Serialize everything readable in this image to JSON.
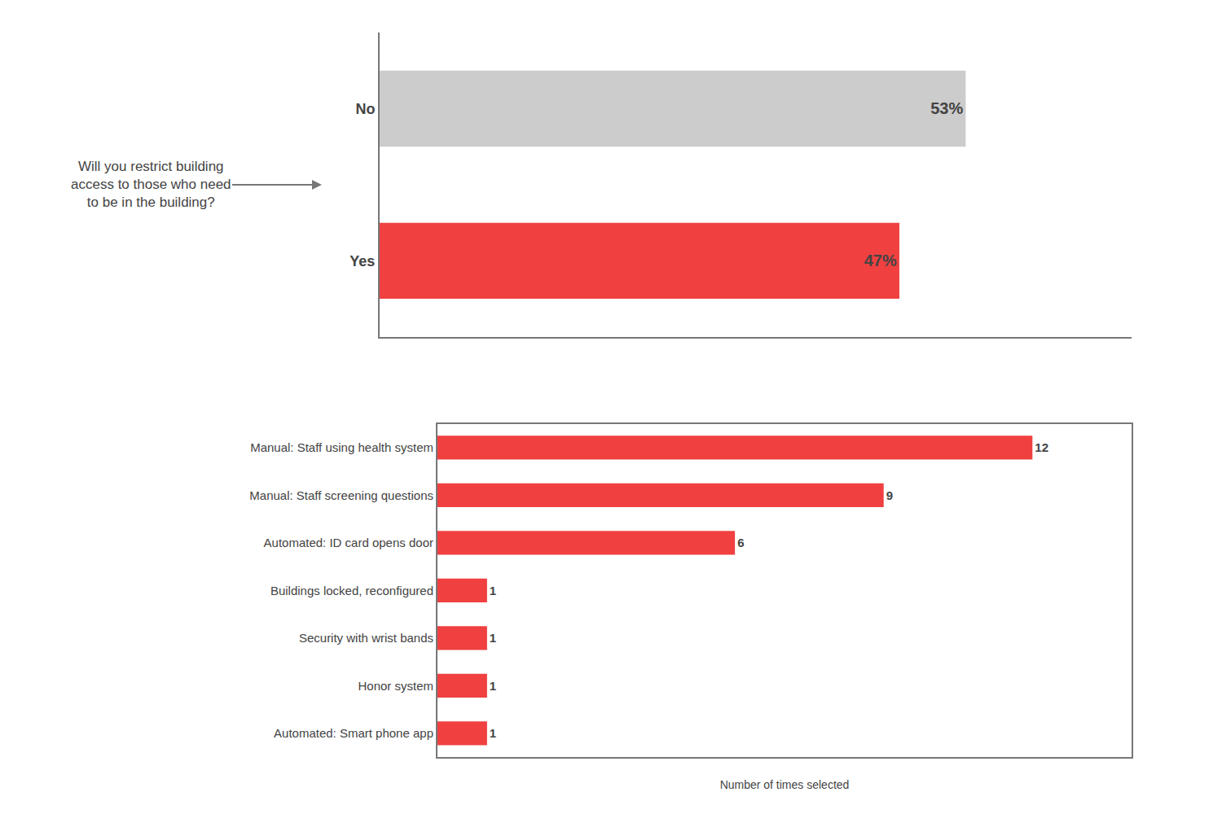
{
  "chart_data": [
    {
      "type": "bar",
      "orientation": "horizontal",
      "annotation": "Will you restrict building\naccess to those who need\nto be in the building?",
      "categories": [
        "No",
        "Yes"
      ],
      "values": [
        53,
        47
      ],
      "value_labels": [
        "53%",
        "47%"
      ],
      "colors": [
        "#cccccc",
        "#f04040"
      ],
      "xlim": [
        0,
        68
      ],
      "data_labels": true,
      "tick_labels": "y",
      "grid": false
    },
    {
      "type": "bar",
      "orientation": "horizontal",
      "x_label": "Number of times selected",
      "categories": [
        "Manual: Staff using health system",
        "Manual: Staff screening questions",
        "Automated: ID card opens door",
        "Buildings locked, reconfigured",
        "Security with wrist bands",
        "Honor system",
        "Automated: Smart phone app"
      ],
      "values": [
        12,
        9,
        6,
        1,
        1,
        1,
        1
      ],
      "color": "#f04040",
      "xlim": [
        0,
        14
      ],
      "data_labels": true,
      "tick_labels": "y",
      "grid": false
    }
  ]
}
